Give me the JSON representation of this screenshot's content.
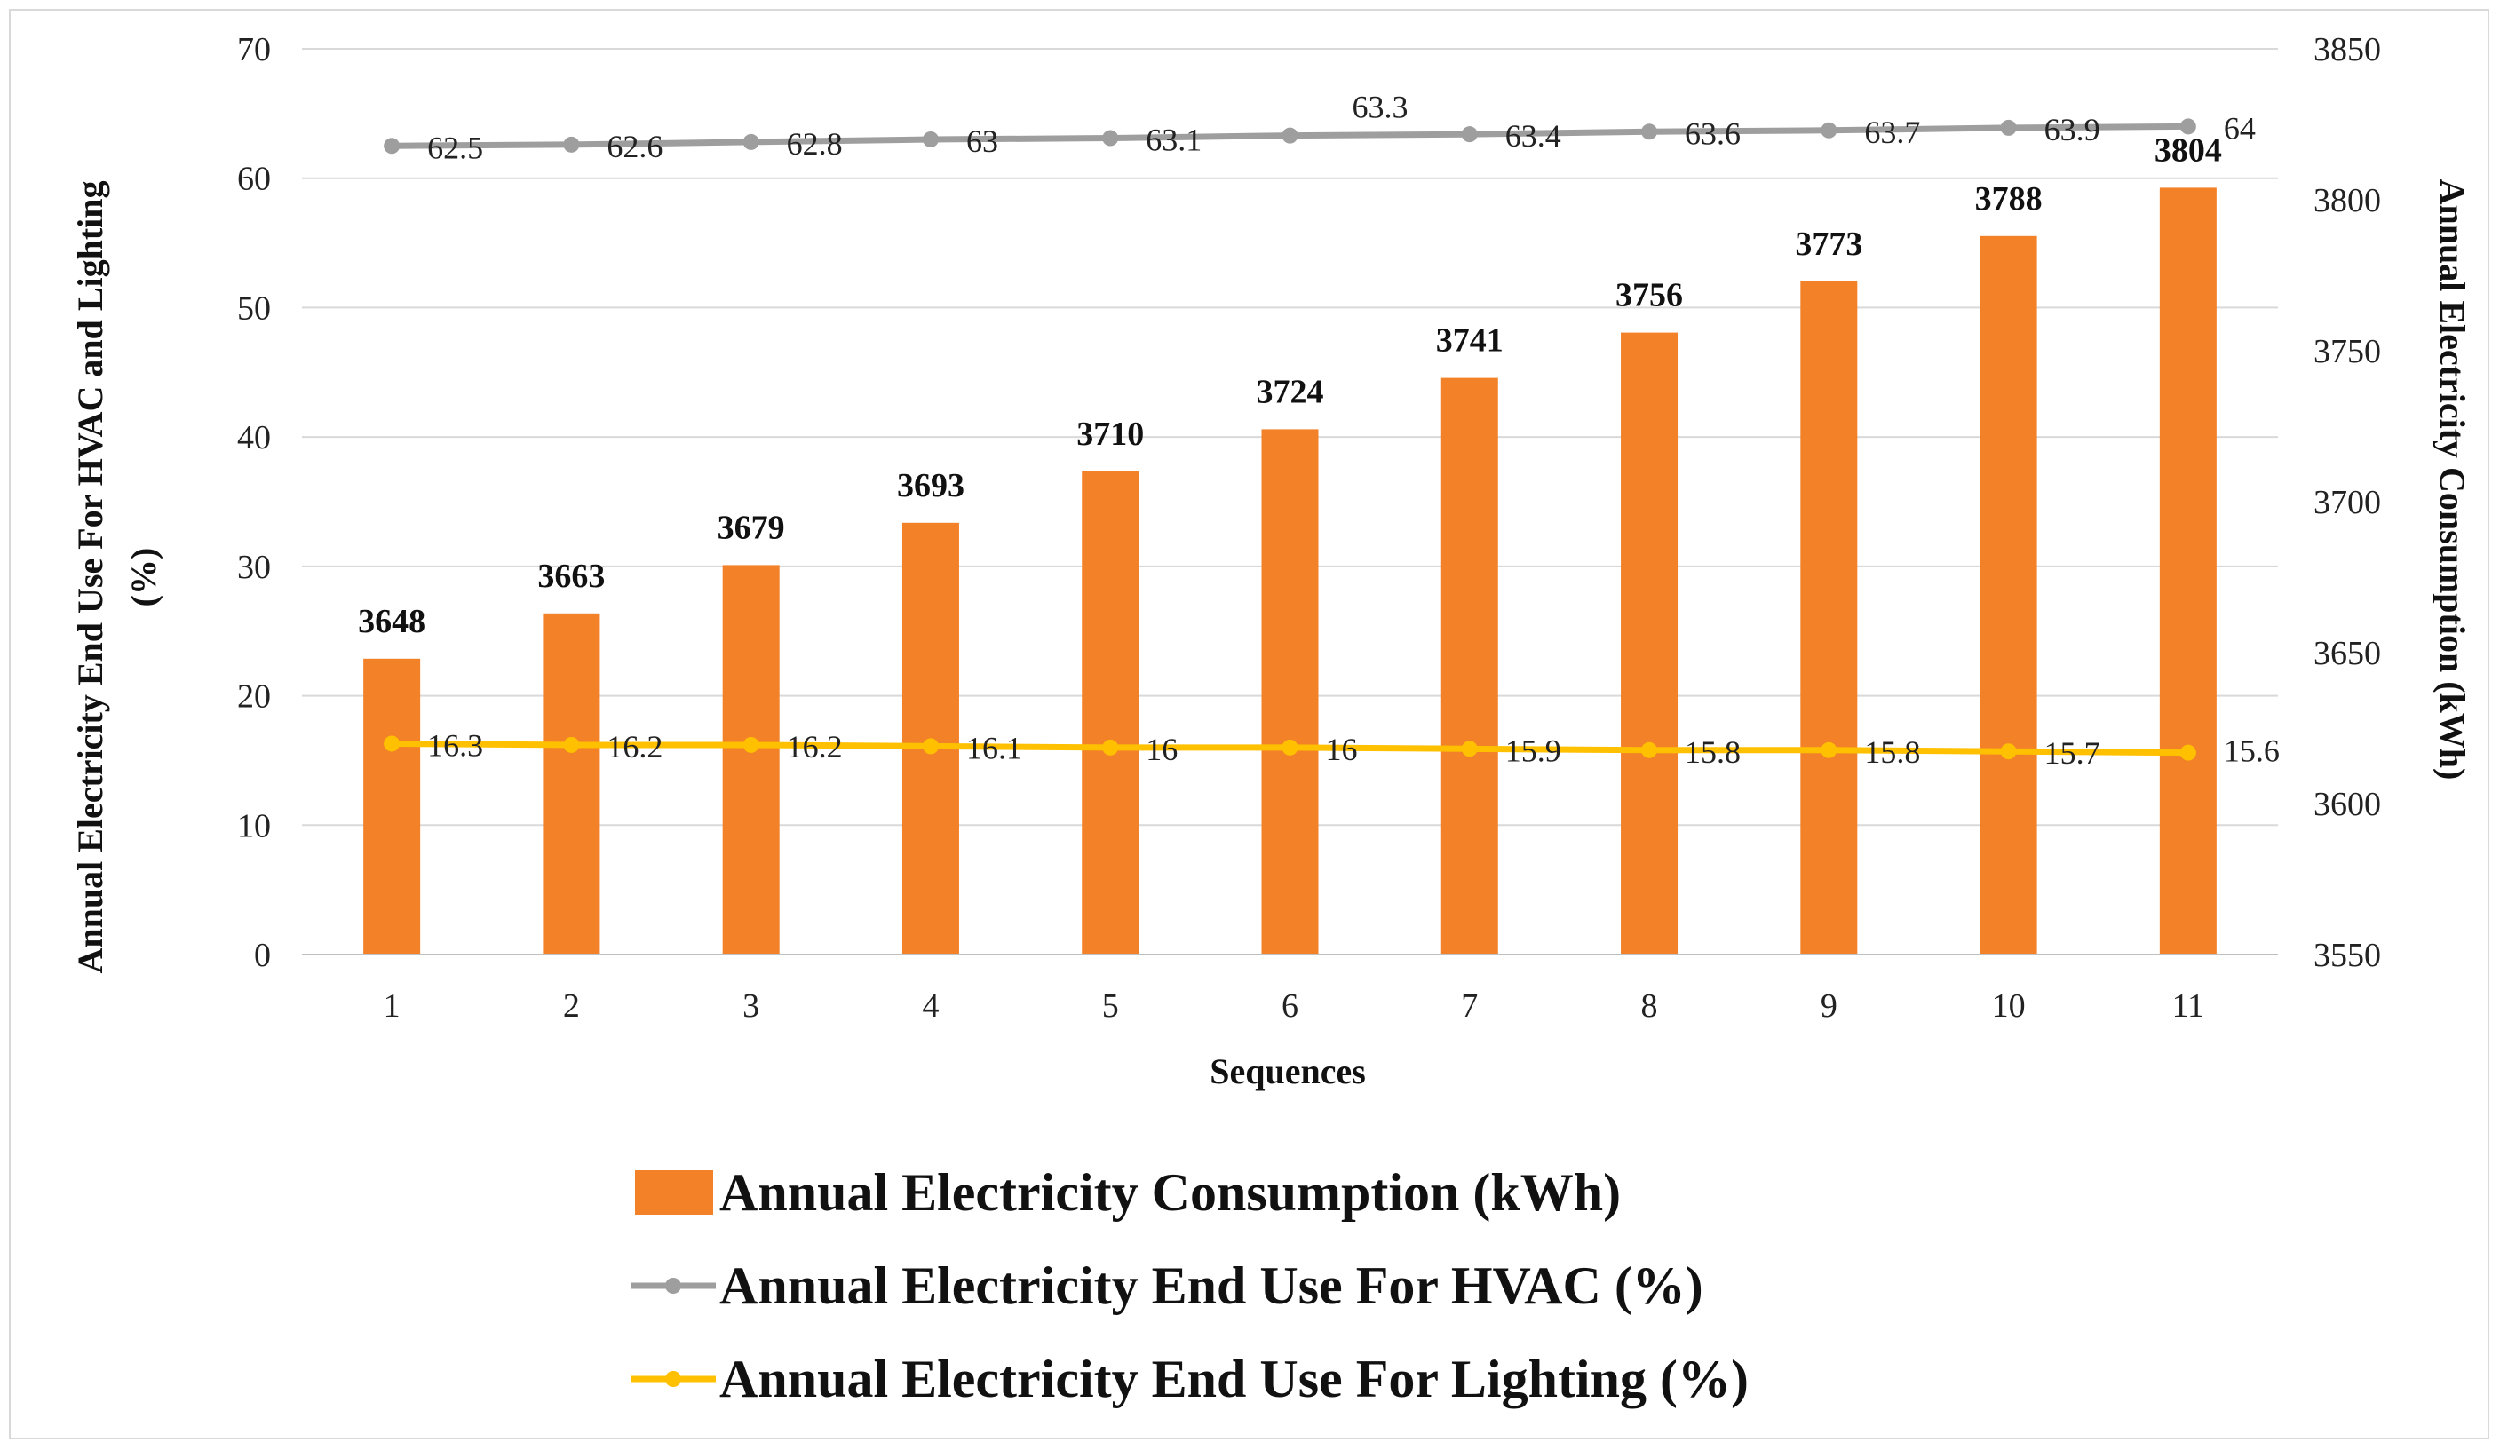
{
  "chart_data": {
    "type": "bar",
    "categories": [
      "1",
      "2",
      "3",
      "4",
      "5",
      "6",
      "7",
      "8",
      "9",
      "10",
      "11"
    ],
    "series": [
      {
        "name": "Annual Electricity Consumption (kWh)",
        "type": "bar",
        "axis": "right",
        "color": "#f28128",
        "values": [
          3648,
          3663,
          3679,
          3693,
          3710,
          3724,
          3741,
          3756,
          3773,
          3788,
          3804
        ],
        "labels": [
          "3648",
          "3663",
          "3679",
          "3693",
          "3710",
          "3724",
          "3741",
          "3756",
          "3773",
          "3788",
          "3804"
        ]
      },
      {
        "name": "Annual Electricity End Use For HVAC (%)",
        "type": "line",
        "axis": "left",
        "color": "#9e9e9e",
        "values": [
          62.5,
          62.6,
          62.8,
          63,
          63.1,
          63.3,
          63.4,
          63.6,
          63.7,
          63.9,
          64
        ],
        "labels": [
          "62.5",
          "62.6",
          "62.8",
          "63",
          "63.1",
          "63.3",
          "63.4",
          "63.6",
          "63.7",
          "63.9",
          "64"
        ]
      },
      {
        "name": "Annual Electricity End Use For Lighting (%)",
        "type": "line",
        "axis": "left",
        "color": "#ffc000",
        "values": [
          16.3,
          16.2,
          16.2,
          16.1,
          16,
          16,
          15.9,
          15.8,
          15.8,
          15.7,
          15.6
        ],
        "labels": [
          "16.3",
          "16.2",
          "16.2",
          "16.1",
          "16",
          "16",
          "15.9",
          "15.8",
          "15.8",
          "15.7",
          "15.6"
        ]
      }
    ],
    "title": "",
    "xlabel": "Sequences",
    "ylabel": "Annual  Electricity  End  Use  For  HVAC  and  Lighting",
    "ylabel_line2": "(%)",
    "y2label": "Annual  Electricity  Consumption  (kWh)",
    "ylim": [
      0,
      70
    ],
    "y2lim": [
      3550,
      3850
    ],
    "yticks": [
      "0",
      "10",
      "20",
      "30",
      "40",
      "50",
      "60",
      "70"
    ],
    "y2ticks": [
      "3550",
      "3600",
      "3650",
      "3700",
      "3750",
      "3800",
      "3850"
    ],
    "grid": true,
    "legend_position": "bottom"
  }
}
